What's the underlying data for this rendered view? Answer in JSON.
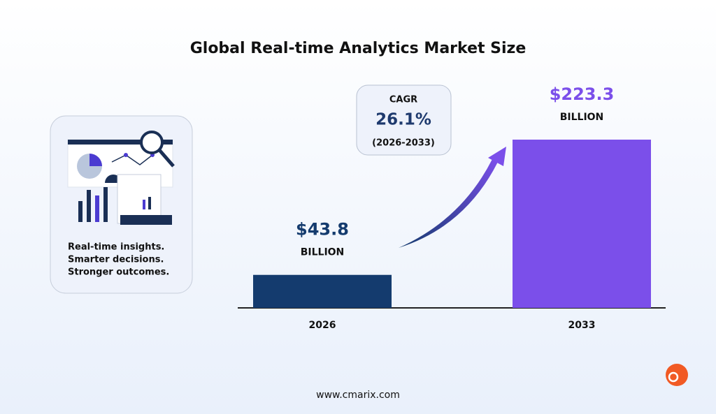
{
  "chart_data": {
    "type": "bar",
    "title": "Global Real-time Analytics Market Size",
    "categories": [
      "2026",
      "2033"
    ],
    "values": [
      43.8,
      223.3
    ],
    "value_labels": [
      "$43.8",
      "$223.3"
    ],
    "value_unit": "BILLION",
    "colors": [
      "#143b6e",
      "#7b4fea"
    ],
    "label_colors": [
      "#143b6e",
      "#7b4fea"
    ],
    "annotation": {
      "label": "CAGR",
      "value": "26.1%",
      "period": "(2026-2033)"
    }
  },
  "sidebar": {
    "lines": [
      "Real-time insights.",
      "Smarter decisions.",
      "Stronger outcomes."
    ]
  },
  "footer": "www.cmarix.com"
}
